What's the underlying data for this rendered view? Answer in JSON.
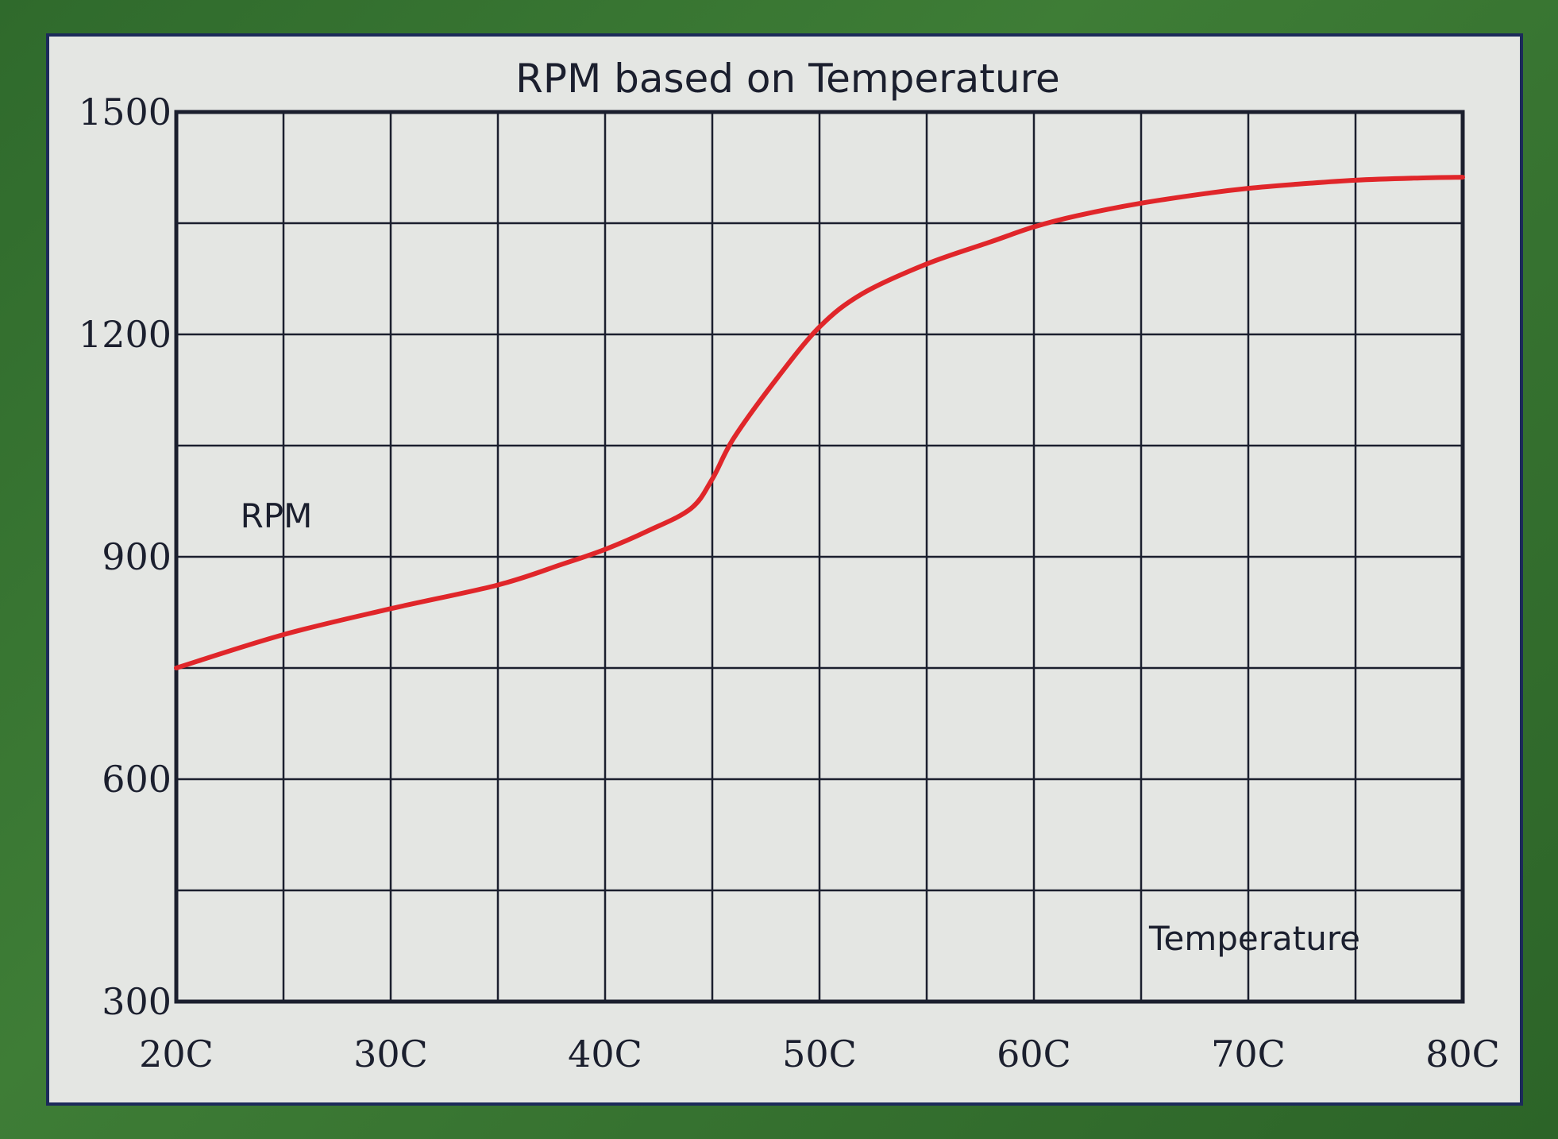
{
  "chart_data": {
    "type": "line",
    "title": "RPM based on Temperature",
    "ylabel": "RPM",
    "xlabel": "Temperature",
    "x_tick_labels": [
      "20C",
      "30C",
      "40C",
      "50C",
      "60C",
      "70C",
      "80C"
    ],
    "y_tick_labels": [
      "1500",
      "1200",
      "900",
      "600",
      "300"
    ],
    "xlim": [
      20,
      80
    ],
    "ylim": [
      300,
      1500
    ],
    "x_ticks": [
      20,
      30,
      40,
      50,
      60,
      70,
      80
    ],
    "y_ticks": [
      300,
      600,
      900,
      1200,
      1500
    ],
    "grid": true,
    "x_minor_step": 5,
    "y_minor_step": 150,
    "series": [
      {
        "color": "#e0262a",
        "x": [
          20,
          25,
          30,
          35,
          38,
          40,
          42,
          44,
          45,
          46,
          48,
          50,
          52,
          55,
          58,
          60,
          62,
          65,
          68,
          70,
          72,
          75,
          78,
          80
        ],
        "y": [
          750,
          795,
          830,
          862,
          890,
          910,
          935,
          965,
          1005,
          1060,
          1140,
          1210,
          1255,
          1295,
          1325,
          1345,
          1360,
          1377,
          1390,
          1397,
          1402,
          1408,
          1411,
          1412
        ]
      }
    ]
  }
}
